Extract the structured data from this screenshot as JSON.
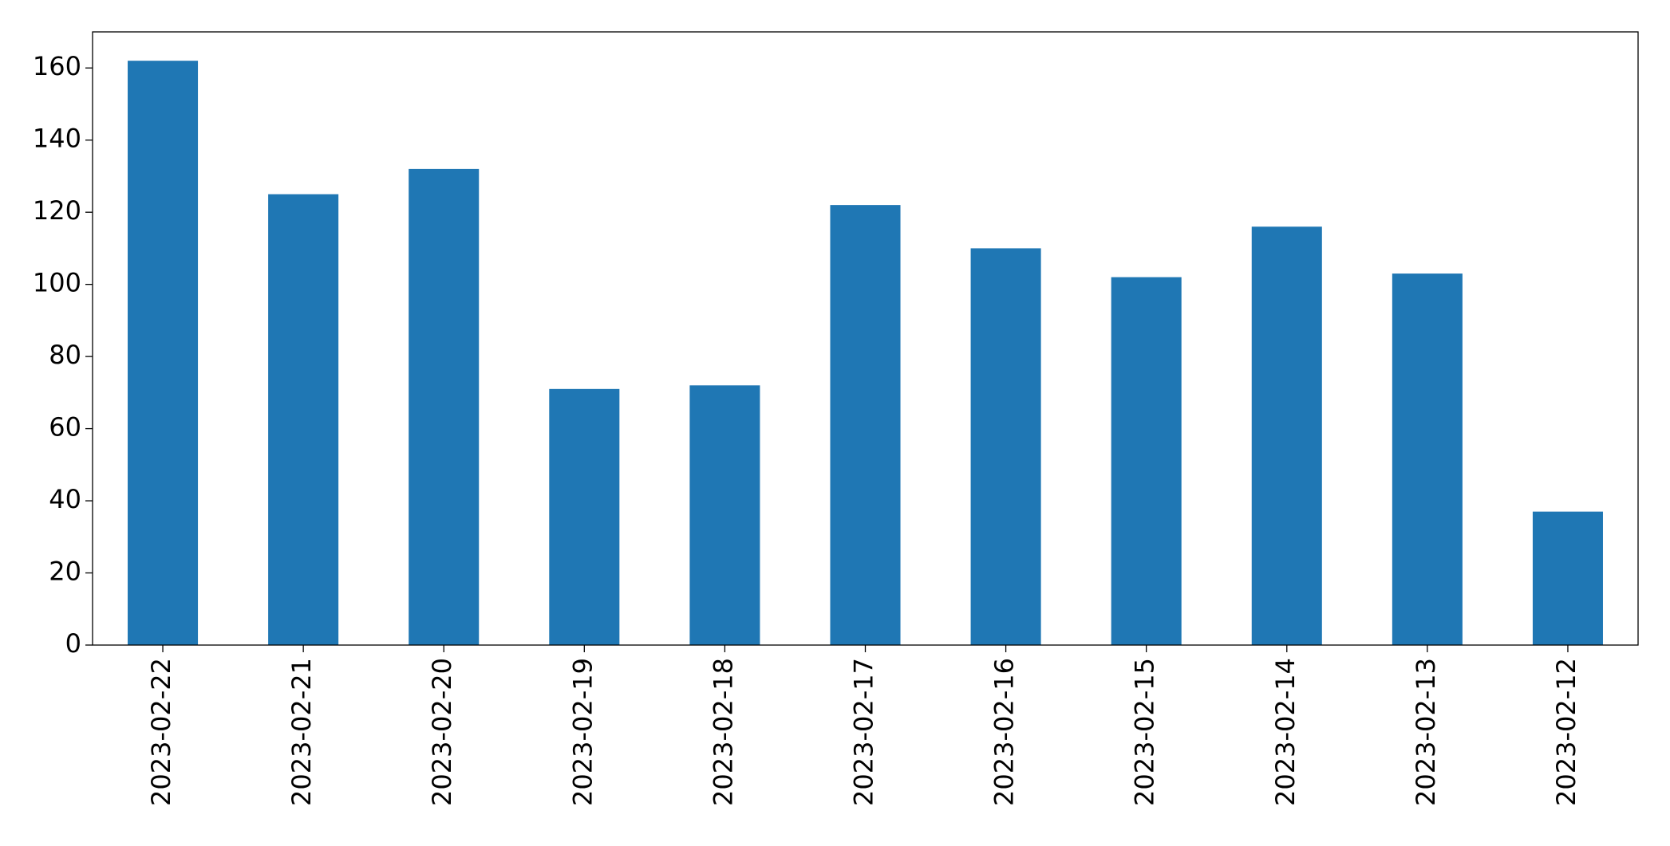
{
  "chart_data": {
    "type": "bar",
    "categories": [
      "2023-02-22",
      "2023-02-21",
      "2023-02-20",
      "2023-02-19",
      "2023-02-18",
      "2023-02-17",
      "2023-02-16",
      "2023-02-15",
      "2023-02-14",
      "2023-02-13",
      "2023-02-12"
    ],
    "values": [
      162,
      125,
      132,
      71,
      72,
      122,
      110,
      102,
      116,
      103,
      37
    ],
    "color": "#1f77b4",
    "ylim": [
      0,
      170
    ],
    "yticks": [
      0,
      20,
      40,
      60,
      80,
      100,
      120,
      140,
      160
    ],
    "grid": false
  }
}
